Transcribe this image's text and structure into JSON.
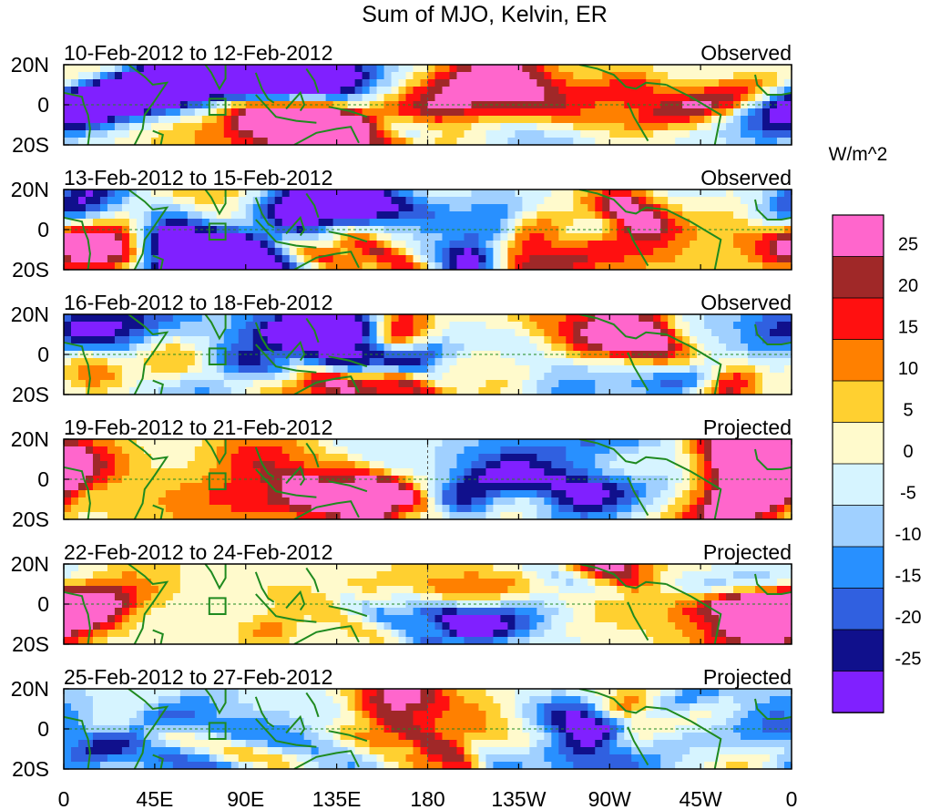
{
  "chart_data": {
    "type": "heatmap",
    "title": "Sum of MJO, Kelvin, ER",
    "panels": [
      {
        "date_range": "10-Feb-2012 to 12-Feb-2012",
        "status": "Observed"
      },
      {
        "date_range": "13-Feb-2012 to 15-Feb-2012",
        "status": "Observed"
      },
      {
        "date_range": "16-Feb-2012 to 18-Feb-2012",
        "status": "Observed"
      },
      {
        "date_range": "19-Feb-2012 to 21-Feb-2012",
        "status": "Projected"
      },
      {
        "date_range": "22-Feb-2012 to 24-Feb-2012",
        "status": "Projected"
      },
      {
        "date_range": "25-Feb-2012 to 27-Feb-2012",
        "status": "Projected"
      }
    ],
    "y_tick_labels": [
      "20N",
      "0",
      "20S"
    ],
    "y_range": [
      -20,
      20
    ],
    "x_tick_labels": [
      "0",
      "45E",
      "90E",
      "135E",
      "180",
      "135W",
      "90W",
      "45W",
      "0"
    ],
    "x_range": [
      0,
      360
    ],
    "colorbar": {
      "units": "W/m^2",
      "tick_labels": [
        "25",
        "20",
        "15",
        "10",
        "5",
        "0",
        "-5",
        "-10",
        "-15",
        "-20",
        "-25"
      ],
      "levels_high_to_low": [
        30,
        25,
        20,
        15,
        10,
        5,
        0,
        -5,
        -10,
        -15,
        -20,
        -25,
        -30
      ],
      "colors_high_to_low": [
        "#ff66cc",
        "#a02828",
        "#ff1010",
        "#ff8000",
        "#ffd030",
        "#fffacc",
        "#d6f4ff",
        "#a0d0ff",
        "#2890ff",
        "#3060e0",
        "#10108c",
        "#8020ff"
      ]
    }
  }
}
